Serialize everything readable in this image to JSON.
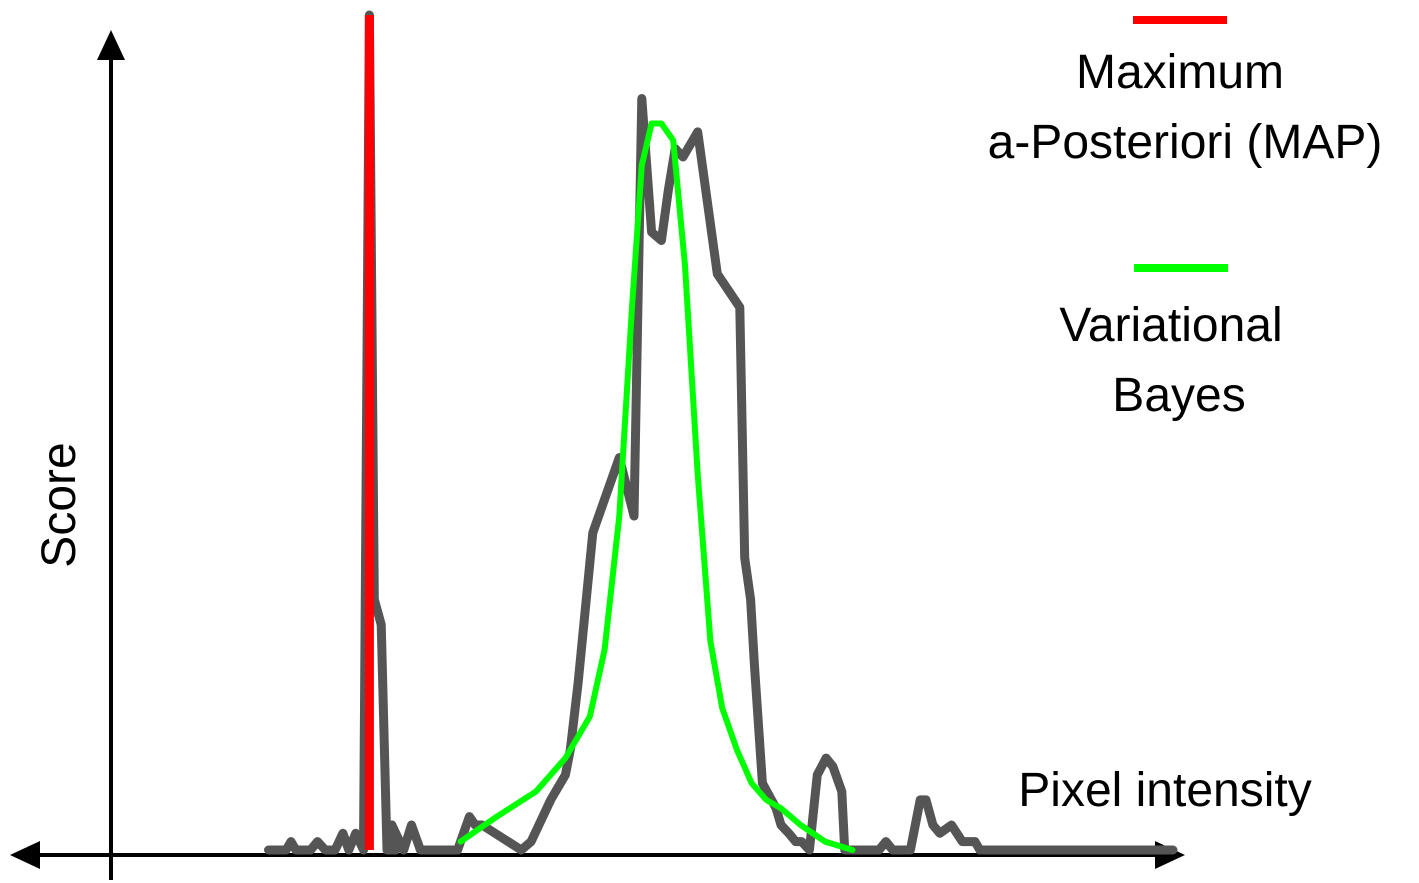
{
  "chart_data": {
    "type": "line",
    "title": "",
    "xlabel": "Pixel intensity",
    "ylabel": "Score",
    "grid": false,
    "xlim": [
      0,
      100
    ],
    "ylim": [
      0,
      100
    ],
    "legend": {
      "placement": "top-right",
      "entries": [
        {
          "lines": [
            "Maximum",
            "a-Posteriori (MAP)"
          ],
          "color": "#ff0000"
        },
        {
          "lines": [
            "Variational",
            "Bayes"
          ],
          "color": "#00ff00"
        }
      ]
    },
    "series": [
      {
        "role": "histogram",
        "color": "#555555",
        "x": [
          7.7,
          9.5,
          10.0,
          10.5,
          12.0,
          12.7,
          13.5,
          14.5,
          15.3,
          15.9,
          16.6,
          17.4,
          18.0,
          18.5,
          19.2,
          19.8,
          20.7,
          20.3,
          21.5,
          22.3,
          23.2,
          27.0,
          28.2,
          28.8,
          29.5,
          33.5,
          34.5,
          35.3,
          36.5,
          38.0,
          38.5,
          39.3,
          40.8,
          43.5,
          45.0,
          45.8,
          46.8,
          47.8,
          48.5,
          49.2,
          50.0,
          51.5,
          53.5,
          55.8,
          56.3,
          56.9,
          57.3,
          58.1,
          59.5,
          60.0,
          60.8,
          61.5,
          62.1,
          62.9,
          63.7,
          64.6,
          65.3,
          66.2,
          66.5,
          67.5,
          69.0,
          70.0,
          70.7,
          71.4,
          72.0,
          72.5,
          73.2,
          74.2,
          74.8,
          75.5,
          76.2,
          77.4,
          78.5,
          79.8,
          80.3,
          80.8,
          81.4,
          82.3,
          82.8,
          83.5,
          84.3,
          85.0,
          85.6,
          86.5,
          86.9,
          87.5,
          89.0,
          90.5,
          91.8,
          100.0
        ],
        "values": [
          0,
          0,
          1,
          0,
          0,
          1,
          0,
          0,
          2,
          0,
          2,
          0,
          100,
          30,
          27,
          0,
          0,
          3,
          0,
          3,
          0,
          0,
          4,
          3,
          3,
          0,
          1,
          3,
          6,
          9,
          12,
          20,
          38,
          47,
          40,
          90,
          74,
          73,
          79,
          84,
          83,
          86,
          69,
          65,
          35,
          30,
          22,
          8,
          5,
          3,
          2,
          1,
          1,
          0,
          9,
          11,
          10,
          7,
          0,
          0,
          0,
          0,
          1,
          0,
          0,
          0,
          0,
          6,
          6,
          3,
          2,
          3,
          1,
          1,
          0,
          0,
          0,
          0,
          0,
          0,
          0,
          0,
          0,
          0,
          0,
          0,
          0,
          0,
          0,
          0
        ]
      },
      {
        "role": "map",
        "color": "#ff0000",
        "x": [
          18.0,
          18.0
        ],
        "values": [
          0,
          100
        ]
      },
      {
        "role": "vb",
        "color": "#00ff00",
        "x": [
          27.3,
          31.0,
          35.0,
          38.0,
          40.5,
          42.0,
          43.5,
          44.8,
          45.8,
          46.8,
          47.8,
          49.0,
          50.2,
          51.5,
          52.8,
          54.0,
          55.5,
          57.0,
          58.5,
          60.0,
          62.0,
          64.5,
          67.3
        ],
        "values": [
          1,
          4,
          7,
          11,
          16,
          24,
          40,
          65,
          82,
          87,
          87,
          85,
          70,
          45,
          25,
          17,
          12,
          8,
          6,
          5,
          3,
          1,
          0
        ]
      }
    ]
  }
}
